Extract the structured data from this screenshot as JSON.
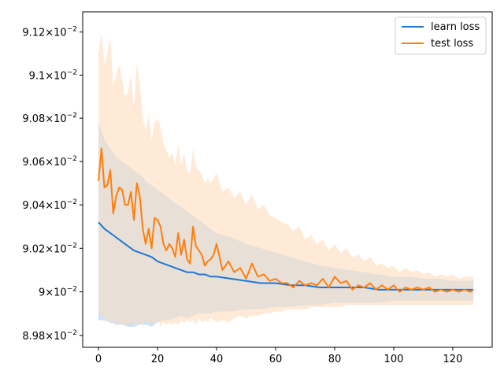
{
  "chart_data": {
    "type": "line",
    "title": "",
    "xlabel": "",
    "ylabel": "",
    "xlim": [
      -5.35,
      133.35
    ],
    "ylim": [
      0.089746,
      0.091294
    ],
    "yscale": "log",
    "grid": false,
    "legend_position": "top-right",
    "xticks": [
      0,
      20,
      40,
      60,
      80,
      100,
      120
    ],
    "yticks": [
      {
        "value": 0.0898,
        "mantissa": "8.98",
        "base": "10",
        "exp": "−2"
      },
      {
        "value": 0.09,
        "mantissa": "9",
        "base": "10",
        "exp": "−2"
      },
      {
        "value": 0.0902,
        "mantissa": "9.02",
        "base": "10",
        "exp": "−2"
      },
      {
        "value": 0.0904,
        "mantissa": "9.04",
        "base": "10",
        "exp": "−2"
      },
      {
        "value": 0.0906,
        "mantissa": "9.06",
        "base": "10",
        "exp": "−2"
      },
      {
        "value": 0.0908,
        "mantissa": "9.08",
        "base": "10",
        "exp": "−2"
      },
      {
        "value": 0.091,
        "mantissa": "9.1",
        "base": "10",
        "exp": "−2"
      },
      {
        "value": 0.0912,
        "mantissa": "9.12",
        "base": "10",
        "exp": "−2"
      }
    ],
    "series": [
      {
        "name": "learn loss",
        "color": "#1f77d4",
        "band_color": "#a8d4ff",
        "x": [
          0,
          2,
          4,
          6,
          8,
          10,
          12,
          14,
          16,
          18,
          20,
          22,
          24,
          26,
          28,
          30,
          32,
          34,
          36,
          38,
          40,
          45,
          50,
          55,
          60,
          65,
          70,
          75,
          80,
          85,
          90,
          95,
          100,
          105,
          110,
          115,
          120,
          127
        ],
        "values": [
          0.09032,
          0.09029,
          0.09027,
          0.09025,
          0.09023,
          0.09021,
          0.09019,
          0.09018,
          0.09017,
          0.09016,
          0.09014,
          0.09013,
          0.09012,
          0.09011,
          0.0901,
          0.09009,
          0.09009,
          0.09008,
          0.09008,
          0.09007,
          0.09007,
          0.09006,
          0.09005,
          0.09004,
          0.09004,
          0.09003,
          0.09003,
          0.09002,
          0.09002,
          0.09002,
          0.09002,
          0.09001,
          0.09001,
          0.09001,
          0.09001,
          0.09001,
          0.09001,
          0.09001
        ],
        "lower": [
          0.08987,
          0.08987,
          0.08986,
          0.08985,
          0.08985,
          0.08984,
          0.08984,
          0.08985,
          0.08985,
          0.08984,
          0.08986,
          0.08987,
          0.08987,
          0.08988,
          0.08989,
          0.08988,
          0.08989,
          0.0899,
          0.0899,
          0.0899,
          0.08991,
          0.08991,
          0.08992,
          0.08992,
          0.08993,
          0.08993,
          0.08994,
          0.08994,
          0.08995,
          0.08995,
          0.08995,
          0.08995,
          0.08996,
          0.08996,
          0.08996,
          0.08996,
          0.08996,
          0.08996
        ],
        "upper": [
          0.09078,
          0.0907,
          0.09066,
          0.09062,
          0.0906,
          0.09058,
          0.09056,
          0.09054,
          0.09051,
          0.09049,
          0.09047,
          0.09045,
          0.09043,
          0.09041,
          0.09039,
          0.09037,
          0.09035,
          0.09033,
          0.09031,
          0.09029,
          0.09027,
          0.09025,
          0.09022,
          0.0902,
          0.09018,
          0.09016,
          0.09014,
          0.09012,
          0.09011,
          0.0901,
          0.09009,
          0.09008,
          0.09007,
          0.09007,
          0.09006,
          0.09006,
          0.09005,
          0.09005
        ]
      },
      {
        "name": "test loss",
        "color": "#ff7f0e",
        "band_color": "#ffdcbc",
        "x": [
          0,
          1,
          2,
          3,
          4,
          5,
          6,
          7,
          8,
          9,
          10,
          11,
          12,
          13,
          14,
          15,
          16,
          17,
          18,
          19,
          20,
          21,
          22,
          23,
          24,
          25,
          26,
          27,
          28,
          29,
          30,
          31,
          32,
          33,
          34,
          35,
          36,
          37,
          38,
          39,
          40,
          42,
          44,
          46,
          48,
          50,
          52,
          54,
          56,
          58,
          60,
          62,
          64,
          66,
          68,
          70,
          72,
          74,
          76,
          78,
          80,
          82,
          84,
          86,
          88,
          90,
          92,
          94,
          96,
          98,
          100,
          102,
          104,
          106,
          108,
          110,
          112,
          114,
          116,
          118,
          120,
          122,
          124,
          126,
          127
        ],
        "values": [
          0.09051,
          0.09066,
          0.09048,
          0.09049,
          0.09056,
          0.09036,
          0.09044,
          0.09048,
          0.09047,
          0.0904,
          0.0904,
          0.09046,
          0.09033,
          0.0905,
          0.09044,
          0.09029,
          0.09022,
          0.09029,
          0.0902,
          0.09034,
          0.09033,
          0.0903,
          0.09022,
          0.09019,
          0.09022,
          0.0902,
          0.09016,
          0.09027,
          0.09017,
          0.09024,
          0.09015,
          0.09013,
          0.0903,
          0.09021,
          0.09019,
          0.09017,
          0.09012,
          0.09014,
          0.09015,
          0.09017,
          0.09022,
          0.0901,
          0.09014,
          0.09009,
          0.09011,
          0.09006,
          0.09013,
          0.09007,
          0.09008,
          0.09005,
          0.09006,
          0.09004,
          0.09004,
          0.09002,
          0.09005,
          0.09003,
          0.09004,
          0.09003,
          0.09006,
          0.09002,
          0.09007,
          0.09004,
          0.09005,
          0.09001,
          0.09003,
          0.09002,
          0.09004,
          0.09001,
          0.09003,
          0.09001,
          0.09003,
          0.09,
          0.09002,
          0.09001,
          0.09002,
          0.09001,
          0.09002,
          0.09,
          0.09001,
          0.09,
          0.09001,
          0.09,
          0.09001,
          0.09,
          0.09001
        ],
        "lower": [
          0.0899,
          0.08989,
          0.08986,
          0.08988,
          0.08985,
          0.08987,
          0.08984,
          0.08986,
          0.08985,
          0.08985,
          0.08984,
          0.08986,
          0.08985,
          0.08985,
          0.08986,
          0.08984,
          0.08987,
          0.08985,
          0.08986,
          0.08985,
          0.08987,
          0.08984,
          0.08986,
          0.08985,
          0.08986,
          0.08985,
          0.08986,
          0.08985,
          0.08987,
          0.08986,
          0.08987,
          0.08986,
          0.08987,
          0.08985,
          0.08988,
          0.08986,
          0.08987,
          0.08986,
          0.08988,
          0.08987,
          0.08986,
          0.08987,
          0.08986,
          0.08988,
          0.08989,
          0.08988,
          0.08989,
          0.08989,
          0.0899,
          0.0899,
          0.08991,
          0.08991,
          0.08992,
          0.08992,
          0.08992,
          0.08992,
          0.08993,
          0.08993,
          0.08993,
          0.08993,
          0.08993,
          0.08993,
          0.08994,
          0.08994,
          0.08994,
          0.08994,
          0.08994,
          0.08994,
          0.08994,
          0.08994,
          0.08994,
          0.08994,
          0.08994,
          0.08994,
          0.08994,
          0.08994,
          0.08994,
          0.08994,
          0.08994,
          0.08994,
          0.08994,
          0.08994,
          0.08994,
          0.08994,
          0.08994
        ],
        "upper": [
          0.0911,
          0.0912,
          0.09105,
          0.0911,
          0.09118,
          0.09095,
          0.091,
          0.09105,
          0.09098,
          0.0909,
          0.09092,
          0.091,
          0.09085,
          0.09106,
          0.09095,
          0.0908,
          0.09074,
          0.09082,
          0.0907,
          0.09078,
          0.0908,
          0.09076,
          0.09068,
          0.09065,
          0.09062,
          0.09064,
          0.09058,
          0.09068,
          0.09058,
          0.09064,
          0.09056,
          0.09054,
          0.09066,
          0.09058,
          0.09056,
          0.09054,
          0.0905,
          0.09052,
          0.0905,
          0.09052,
          0.09055,
          0.09046,
          0.09048,
          0.09043,
          0.09046,
          0.0904,
          0.09045,
          0.09038,
          0.0904,
          0.09035,
          0.09034,
          0.09032,
          0.09031,
          0.09028,
          0.0903,
          0.09024,
          0.09026,
          0.09022,
          0.09024,
          0.09019,
          0.09022,
          0.09018,
          0.0902,
          0.09016,
          0.09017,
          0.09014,
          0.09016,
          0.09012,
          0.09013,
          0.09011,
          0.09012,
          0.09009,
          0.09011,
          0.09009,
          0.0901,
          0.09008,
          0.09009,
          0.09007,
          0.09008,
          0.09007,
          0.09008,
          0.09006,
          0.09007,
          0.09007,
          0.09007
        ]
      }
    ]
  }
}
